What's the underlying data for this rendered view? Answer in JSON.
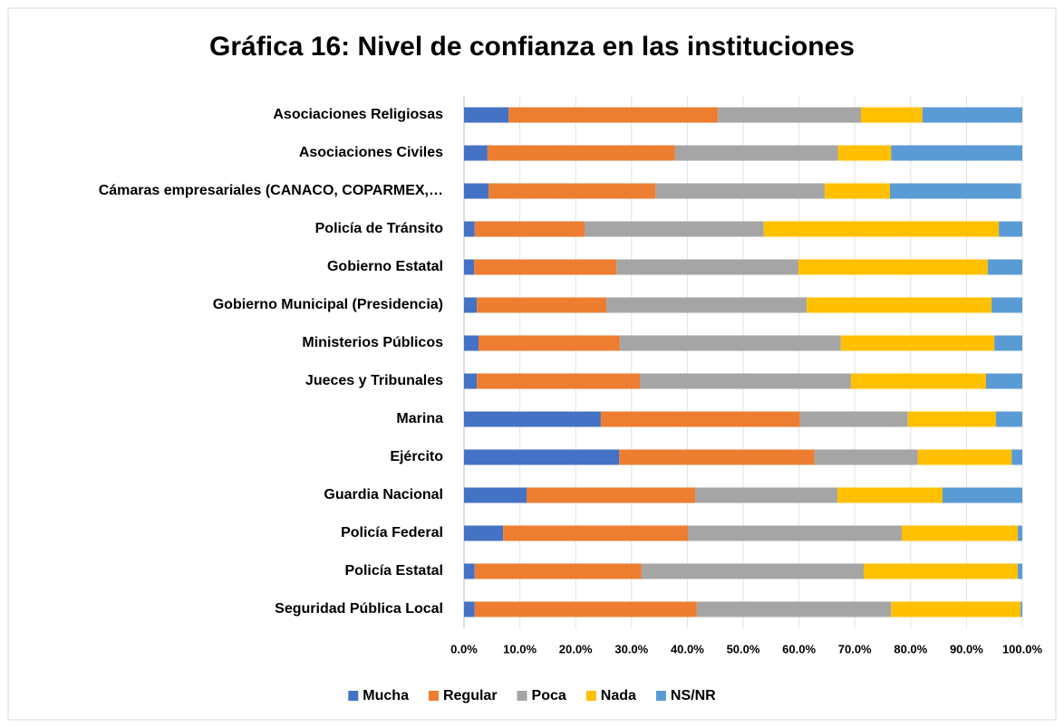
{
  "chart_data": {
    "type": "stacked_bar_horizontal",
    "title": "Gráfica 16: Nivel de confianza en las instituciones",
    "categories": [
      "Asociaciones Religiosas",
      "Asociaciones Civiles",
      "Cámaras empresariales (CANACO, COPARMEX,…",
      "Policía de Tránsito",
      "Gobierno Estatal",
      "Gobierno Municipal (Presidencia)",
      "Ministerios Públicos",
      "Jueces y Tribunales",
      "Marina",
      "Ejército",
      "Guardia Nacional",
      "Policía Federal",
      "Policía Estatal",
      "Seguridad Pública Local"
    ],
    "series": [
      {
        "name": "Mucha",
        "color": "#4472c4",
        "values": [
          8.0,
          4.2,
          4.4,
          1.9,
          1.8,
          2.3,
          2.6,
          2.3,
          24.5,
          27.8,
          11.2,
          7.0,
          1.9,
          1.9
        ]
      },
      {
        "name": "Regular",
        "color": "#ed7d31",
        "values": [
          37.5,
          33.6,
          29.9,
          19.7,
          25.5,
          23.2,
          25.3,
          29.2,
          35.7,
          35.0,
          30.2,
          33.1,
          29.9,
          39.8
        ]
      },
      {
        "name": "Poca",
        "color": "#a5a5a5",
        "values": [
          25.6,
          29.2,
          30.3,
          32.1,
          32.6,
          35.9,
          39.6,
          37.8,
          19.3,
          18.5,
          25.5,
          38.3,
          39.8,
          34.8
        ]
      },
      {
        "name": "Nada",
        "color": "#ffc000",
        "values": [
          11.0,
          9.5,
          11.7,
          42.1,
          33.9,
          33.1,
          27.5,
          24.2,
          15.8,
          16.8,
          18.8,
          20.8,
          27.6,
          23.2
        ]
      },
      {
        "name": "NS/NR",
        "color": "#5b9bd5",
        "values": [
          17.9,
          23.5,
          23.5,
          4.2,
          6.2,
          5.5,
          5.0,
          6.5,
          4.7,
          1.9,
          14.3,
          0.8,
          0.8,
          0.3
        ]
      }
    ],
    "xlim": [
      0,
      100
    ],
    "xticks": [
      {
        "value": 0,
        "label": "0.0%"
      },
      {
        "value": 10,
        "label": "10.0%"
      },
      {
        "value": 20,
        "label": "20.0%"
      },
      {
        "value": 30,
        "label": "30.0%"
      },
      {
        "value": 40,
        "label": "40.0%"
      },
      {
        "value": 50,
        "label": "50.0%"
      },
      {
        "value": 60,
        "label": "60.0%"
      },
      {
        "value": 70,
        "label": "70.0%"
      },
      {
        "value": 80,
        "label": "80.0%"
      },
      {
        "value": 90,
        "label": "90.0%"
      },
      {
        "value": 100,
        "label": "100.0%"
      }
    ],
    "grid": true,
    "legend": "bottom"
  }
}
